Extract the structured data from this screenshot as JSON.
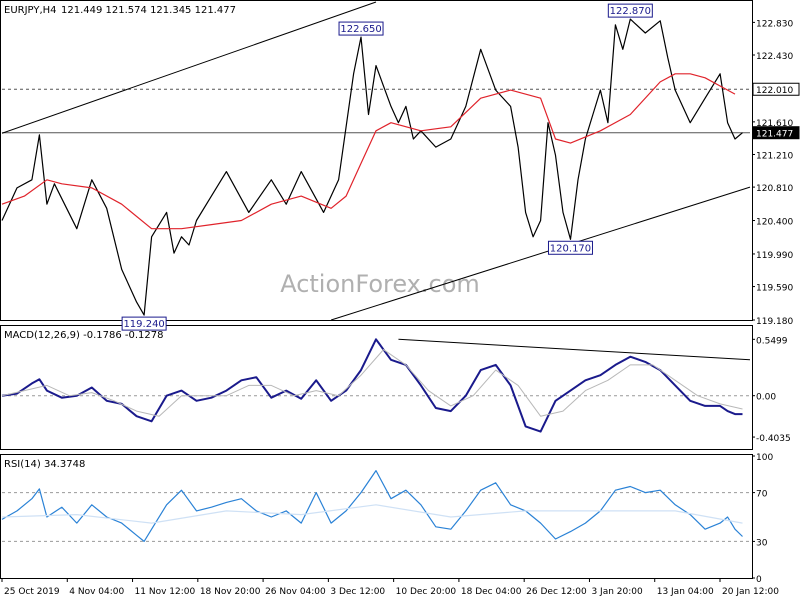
{
  "chart_data": [
    {
      "type": "line",
      "panel": "price",
      "title": "EURJPY,H4",
      "ohlc_header": "121.449 121.574 121.345 121.477",
      "y_ticks": [
        "122.830",
        "122.430",
        "122.010",
        "121.610",
        "121.210",
        "120.810",
        "120.400",
        "119.990",
        "119.590",
        "119.180"
      ],
      "ylim": [
        119.18,
        123.08
      ],
      "xlim": [
        0,
        100
      ],
      "series": [
        {
          "name": "price",
          "color": "#000000",
          "x": [
            0,
            2,
            4,
            5,
            6,
            7,
            10,
            12,
            14,
            16,
            18,
            19,
            20,
            22,
            23,
            24,
            25,
            26,
            28,
            30,
            33,
            36,
            38,
            40,
            43,
            45,
            47,
            48,
            49,
            50,
            52,
            53,
            54,
            55,
            56,
            58,
            60,
            62,
            64,
            66,
            68,
            69,
            70,
            71,
            72,
            73,
            74,
            75,
            76,
            77,
            78,
            79,
            80,
            81,
            82,
            83,
            84,
            86,
            88,
            89,
            90,
            92,
            94,
            96,
            97,
            98,
            99
          ],
          "y": [
            120.4,
            120.8,
            120.9,
            121.45,
            120.6,
            120.85,
            120.3,
            120.9,
            120.55,
            119.8,
            119.4,
            119.24,
            120.2,
            120.5,
            120.0,
            120.2,
            120.1,
            120.4,
            120.7,
            121.0,
            120.5,
            120.9,
            120.6,
            121.0,
            120.5,
            120.9,
            122.2,
            122.65,
            121.7,
            122.3,
            121.8,
            121.6,
            121.8,
            121.4,
            121.5,
            121.3,
            121.4,
            121.8,
            122.5,
            122.0,
            121.8,
            121.3,
            120.5,
            120.2,
            120.4,
            121.6,
            121.2,
            120.5,
            120.17,
            120.9,
            121.4,
            121.7,
            122.0,
            121.6,
            122.8,
            122.5,
            122.87,
            122.7,
            122.85,
            122.4,
            122.0,
            121.6,
            121.9,
            122.2,
            121.6,
            121.4,
            121.477
          ]
        },
        {
          "name": "ma",
          "color": "#e0232b",
          "x": [
            0,
            3,
            6,
            8,
            12,
            16,
            20,
            24,
            28,
            32,
            36,
            40,
            44,
            46,
            48,
            50,
            52,
            56,
            60,
            64,
            68,
            72,
            74,
            76,
            80,
            84,
            88,
            90,
            92,
            94,
            96,
            98
          ],
          "y": [
            120.6,
            120.7,
            120.9,
            120.85,
            120.8,
            120.6,
            120.3,
            120.3,
            120.35,
            120.4,
            120.6,
            120.7,
            120.55,
            120.7,
            121.1,
            121.5,
            121.6,
            121.5,
            121.55,
            121.9,
            122.0,
            121.9,
            121.4,
            121.35,
            121.5,
            121.7,
            122.1,
            122.2,
            122.2,
            122.15,
            122.05,
            121.95
          ]
        }
      ],
      "trendlines": [
        {
          "kind": "upper_channel",
          "x": [
            0,
            50
          ],
          "y": [
            121.47,
            123.08
          ]
        },
        {
          "kind": "lower_channel",
          "x": [
            44,
            100
          ],
          "y": [
            119.18,
            120.81
          ]
        }
      ],
      "hlines": [
        122.01,
        121.477
      ],
      "labels": [
        {
          "text": "122.650",
          "x": 48,
          "y": 122.65
        },
        {
          "text": "122.870",
          "x": 84,
          "y": 122.87
        },
        {
          "text": "120.170",
          "x": 76,
          "y": 120.17
        },
        {
          "text": "119.240",
          "x": 19,
          "y": 119.24
        }
      ],
      "tags": [
        {
          "text": "122.010",
          "value": 122.01,
          "bg": "#ffffff"
        },
        {
          "text": "121.477",
          "value": 121.477,
          "bg": "#000000"
        }
      ],
      "watermark": "ActionForex.com"
    },
    {
      "type": "line",
      "panel": "macd",
      "title": "MACD(12,26,9) -0.1786 -0.1278",
      "y_ticks": [
        "0.5499",
        "0.00",
        "-0.4035"
      ],
      "ylim": [
        -0.52,
        0.67
      ],
      "xlim": [
        0,
        100
      ],
      "series": [
        {
          "name": "macd",
          "color": "#1a1a8c",
          "x": [
            0,
            2,
            4,
            5,
            6,
            8,
            10,
            12,
            14,
            16,
            18,
            20,
            22,
            24,
            26,
            28,
            30,
            32,
            34,
            36,
            38,
            40,
            42,
            44,
            46,
            48,
            50,
            52,
            54,
            56,
            58,
            60,
            62,
            64,
            66,
            68,
            70,
            72,
            74,
            76,
            78,
            80,
            82,
            84,
            86,
            88,
            90,
            92,
            94,
            96,
            97,
            98,
            99
          ],
          "y": [
            0.0,
            0.02,
            0.12,
            0.16,
            0.05,
            -0.02,
            0.0,
            0.08,
            -0.05,
            -0.08,
            -0.2,
            -0.25,
            0.0,
            0.05,
            -0.05,
            -0.02,
            0.05,
            0.15,
            0.18,
            -0.02,
            0.05,
            -0.03,
            0.15,
            -0.05,
            0.05,
            0.25,
            0.55,
            0.35,
            0.3,
            0.1,
            -0.12,
            -0.15,
            0.0,
            0.25,
            0.3,
            0.1,
            -0.3,
            -0.35,
            -0.05,
            0.05,
            0.15,
            0.2,
            0.3,
            0.38,
            0.33,
            0.25,
            0.1,
            -0.05,
            -0.1,
            -0.1,
            -0.15,
            -0.18,
            -0.18
          ]
        },
        {
          "name": "signal",
          "color": "#b8b8b8",
          "x": [
            0,
            3,
            6,
            9,
            12,
            15,
            18,
            21,
            24,
            27,
            30,
            33,
            36,
            39,
            42,
            45,
            48,
            51,
            54,
            57,
            60,
            63,
            66,
            69,
            72,
            75,
            78,
            81,
            84,
            87,
            90,
            93,
            96,
            99
          ],
          "y": [
            0.0,
            0.05,
            0.1,
            0.0,
            0.03,
            -0.05,
            -0.15,
            -0.2,
            0.0,
            0.0,
            0.0,
            0.1,
            0.1,
            0.0,
            0.05,
            0.0,
            0.2,
            0.45,
            0.3,
            0.05,
            -0.1,
            0.0,
            0.25,
            0.1,
            -0.2,
            -0.15,
            0.05,
            0.15,
            0.3,
            0.3,
            0.15,
            0.0,
            -0.08,
            -0.13
          ]
        }
      ],
      "trendlines": [
        {
          "kind": "macd_resistance",
          "x": [
            53,
            100
          ],
          "y": [
            0.55,
            0.35
          ]
        }
      ],
      "hlines": [
        0
      ]
    },
    {
      "type": "line",
      "panel": "rsi",
      "title": "RSI(14) 34.3748",
      "y_ticks": [
        "100",
        "70",
        "30",
        "0"
      ],
      "ylim": [
        0,
        100
      ],
      "xlim": [
        0,
        100
      ],
      "series": [
        {
          "name": "rsi",
          "color": "#2a82d6",
          "x": [
            0,
            2,
            4,
            5,
            6,
            8,
            10,
            12,
            14,
            16,
            18,
            19,
            20,
            22,
            24,
            26,
            28,
            30,
            32,
            34,
            36,
            38,
            40,
            42,
            44,
            46,
            48,
            50,
            52,
            54,
            56,
            58,
            60,
            62,
            64,
            66,
            68,
            70,
            72,
            74,
            76,
            78,
            80,
            82,
            84,
            86,
            88,
            90,
            92,
            94,
            96,
            97,
            98,
            99
          ],
          "y": [
            48,
            55,
            65,
            73,
            50,
            58,
            45,
            60,
            50,
            45,
            35,
            30,
            40,
            60,
            72,
            55,
            58,
            62,
            65,
            55,
            50,
            55,
            45,
            70,
            45,
            55,
            70,
            88,
            65,
            72,
            60,
            42,
            40,
            55,
            72,
            78,
            60,
            55,
            45,
            32,
            38,
            45,
            55,
            72,
            75,
            70,
            72,
            60,
            52,
            40,
            45,
            50,
            40,
            34
          ]
        },
        {
          "name": "rsi-signal",
          "color": "#cfe1f5",
          "x": [
            0,
            10,
            20,
            30,
            40,
            50,
            60,
            70,
            80,
            90,
            99
          ],
          "y": [
            50,
            52,
            45,
            55,
            52,
            60,
            50,
            55,
            55,
            55,
            45
          ]
        }
      ],
      "hlines": [
        70,
        30
      ]
    }
  ],
  "x_axis": {
    "labels": [
      "25 Oct 2019",
      "4 Nov 04:00",
      "11 Nov 12:00",
      "18 Nov 20:00",
      "26 Nov 04:00",
      "3 Dec 12:00",
      "10 Dec 20:00",
      "18 Dec 04:00",
      "26 Dec 12:00",
      "3 Jan 20:00",
      "13 Jan 04:00",
      "20 Jan 12:00"
    ]
  }
}
